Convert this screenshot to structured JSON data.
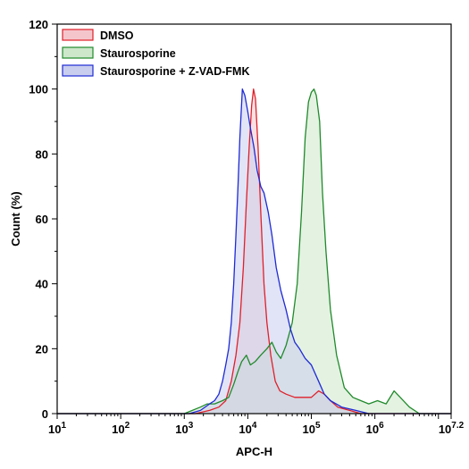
{
  "chart_data": {
    "type": "area",
    "title": "",
    "xlabel": "APC-H",
    "ylabel": "Count (%)",
    "xscale": "log",
    "xlim": [
      10,
      15848932
    ],
    "ylim": [
      0,
      120
    ],
    "grid": false,
    "legend_position": "top-left",
    "x_ticks": [
      {
        "value": 10,
        "base": "10",
        "exp": "1"
      },
      {
        "value": 100,
        "base": "10",
        "exp": "2"
      },
      {
        "value": 1000,
        "base": "10",
        "exp": "3"
      },
      {
        "value": 10000,
        "base": "10",
        "exp": "4"
      },
      {
        "value": 100000,
        "base": "10",
        "exp": "5"
      },
      {
        "value": 1000000,
        "base": "10",
        "exp": "6"
      },
      {
        "value": 15848932,
        "base": "10",
        "exp": "7.2"
      }
    ],
    "y_ticks": [
      "0",
      "20",
      "40",
      "60",
      "80",
      "100",
      "120"
    ],
    "series": [
      {
        "name": "DMSO",
        "color": "#e0202a",
        "fill": "#f4c6cc",
        "points": [
          [
            10,
            0
          ],
          [
            500,
            0
          ],
          [
            1500,
            0
          ],
          [
            2500,
            1
          ],
          [
            3500,
            2
          ],
          [
            4500,
            4
          ],
          [
            5500,
            10
          ],
          [
            6500,
            18
          ],
          [
            7500,
            28
          ],
          [
            8500,
            45
          ],
          [
            9500,
            65
          ],
          [
            10500,
            82
          ],
          [
            11500,
            95
          ],
          [
            12300,
            100
          ],
          [
            13200,
            97
          ],
          [
            14500,
            82
          ],
          [
            16000,
            62
          ],
          [
            18000,
            40
          ],
          [
            20000,
            28
          ],
          [
            23000,
            18
          ],
          [
            27000,
            10
          ],
          [
            32000,
            7
          ],
          [
            40000,
            6
          ],
          [
            55000,
            5
          ],
          [
            75000,
            5
          ],
          [
            100000,
            5
          ],
          [
            130000,
            7
          ],
          [
            160000,
            6
          ],
          [
            200000,
            4
          ],
          [
            260000,
            2
          ],
          [
            400000,
            1
          ],
          [
            600000,
            0
          ],
          [
            1000000,
            0
          ],
          [
            15848932,
            0
          ]
        ]
      },
      {
        "name": "Staurosporine",
        "color": "#1f8a2a",
        "fill": "#cde7cb",
        "points": [
          [
            10,
            0
          ],
          [
            1000,
            0
          ],
          [
            1800,
            2
          ],
          [
            2300,
            3
          ],
          [
            3000,
            3
          ],
          [
            4000,
            4
          ],
          [
            5000,
            5
          ],
          [
            6000,
            9
          ],
          [
            7000,
            13
          ],
          [
            8000,
            16
          ],
          [
            9500,
            18
          ],
          [
            11000,
            15
          ],
          [
            13000,
            16
          ],
          [
            16000,
            18
          ],
          [
            20000,
            20
          ],
          [
            24000,
            22
          ],
          [
            28000,
            19
          ],
          [
            33000,
            17
          ],
          [
            40000,
            21
          ],
          [
            50000,
            28
          ],
          [
            60000,
            40
          ],
          [
            70000,
            62
          ],
          [
            80000,
            85
          ],
          [
            90000,
            96
          ],
          [
            100000,
            99
          ],
          [
            110000,
            100
          ],
          [
            120000,
            98
          ],
          [
            135000,
            90
          ],
          [
            150000,
            68
          ],
          [
            170000,
            50
          ],
          [
            200000,
            32
          ],
          [
            250000,
            18
          ],
          [
            330000,
            8
          ],
          [
            450000,
            5
          ],
          [
            600000,
            4
          ],
          [
            800000,
            3
          ],
          [
            1100000,
            4
          ],
          [
            1500000,
            3
          ],
          [
            2000000,
            7
          ],
          [
            2500000,
            5
          ],
          [
            3500000,
            2
          ],
          [
            5000000,
            0
          ],
          [
            15848932,
            0
          ]
        ]
      },
      {
        "name": "Staurosporine + Z-VAD-FMK",
        "color": "#1f2bd4",
        "fill": "#c9cdee",
        "points": [
          [
            10,
            0
          ],
          [
            500,
            0
          ],
          [
            1200,
            0
          ],
          [
            1800,
            1
          ],
          [
            2500,
            3
          ],
          [
            3000,
            4
          ],
          [
            3500,
            6
          ],
          [
            4000,
            10
          ],
          [
            4500,
            15
          ],
          [
            5000,
            20
          ],
          [
            5500,
            28
          ],
          [
            6000,
            40
          ],
          [
            6500,
            55
          ],
          [
            7000,
            70
          ],
          [
            7500,
            85
          ],
          [
            8200,
            100
          ],
          [
            9000,
            98
          ],
          [
            10000,
            93
          ],
          [
            11000,
            88
          ],
          [
            12500,
            82
          ],
          [
            14000,
            75
          ],
          [
            16000,
            70
          ],
          [
            18000,
            68
          ],
          [
            21000,
            62
          ],
          [
            24000,
            55
          ],
          [
            28000,
            45
          ],
          [
            33000,
            38
          ],
          [
            40000,
            32
          ],
          [
            47000,
            26
          ],
          [
            55000,
            22
          ],
          [
            65000,
            20
          ],
          [
            80000,
            17
          ],
          [
            100000,
            15
          ],
          [
            130000,
            10
          ],
          [
            160000,
            6
          ],
          [
            200000,
            4
          ],
          [
            300000,
            2
          ],
          [
            500000,
            1
          ],
          [
            800000,
            0
          ],
          [
            15848932,
            0
          ]
        ]
      }
    ]
  }
}
